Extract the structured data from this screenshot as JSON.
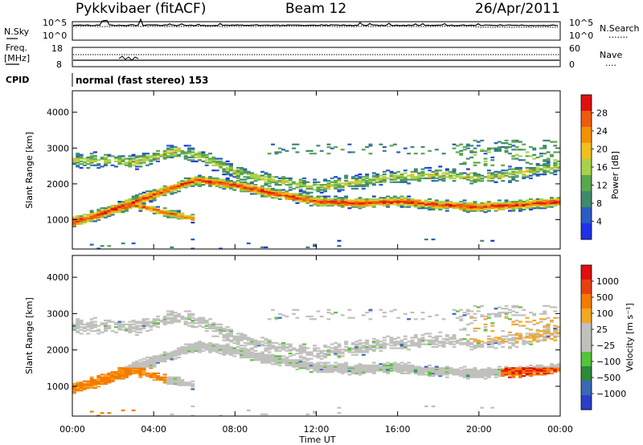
{
  "header": {
    "radar": "Pykkvibaer (fitACF)",
    "beam": "Beam 12",
    "date": "26/Apr/2011"
  },
  "strip": {
    "left_label": "N.Sky",
    "left_ticks": [
      "10^5",
      "10^0"
    ],
    "right_label": "N.Search",
    "right_ticks": [
      "10^5",
      "10^0"
    ],
    "right_legend": "......."
  },
  "freq": {
    "left_label_1": "Freq.",
    "left_label_2": "[MHz]",
    "left_ticks": [
      "18",
      "8"
    ],
    "right_label": "Nave",
    "right_ticks": [
      "60",
      "0"
    ],
    "right_legend": "....",
    "cpid_label": "CPID",
    "mode": "normal (fast stereo) 153"
  },
  "chart_data": [
    {
      "type": "heatmap",
      "parameter": "power",
      "ylabel": "Slant Range [km]",
      "ylim": [
        180,
        4600
      ],
      "yticks": [
        "1000",
        "2000",
        "3000",
        "4000"
      ],
      "colorbar_label": "Power [dB]",
      "colorbar_ticks": [
        "4",
        "8",
        "12",
        "16",
        "20",
        "24",
        "28"
      ],
      "colorscale": [
        "#1e32e6",
        "#2a5cc4",
        "#3f8a6c",
        "#5aa84e",
        "#a8d24a",
        "#f0c020",
        "#f39200",
        "#ef5a0c",
        "#e01010"
      ],
      "bands": [
        {
          "name": "main",
          "range_km": [
            [
              0,
              900
            ],
            [
              2,
              1300
            ],
            [
              4,
              1700
            ],
            [
              6,
              2100
            ],
            [
              8,
              1950
            ],
            [
              10,
              1700
            ],
            [
              12,
              1500
            ],
            [
              14,
              1450
            ],
            [
              16,
              1500
            ],
            [
              18,
              1400
            ],
            [
              20,
              1350
            ],
            [
              22,
              1400
            ],
            [
              24,
              1500
            ]
          ]
        }
      ]
    },
    {
      "type": "heatmap",
      "parameter": "velocity",
      "ylabel": "Slant Range [km]",
      "xlabel": "Time UT",
      "ylim": [
        180,
        4600
      ],
      "yticks": [
        "1000",
        "2000",
        "3000",
        "4000"
      ],
      "xticks": [
        "00:00",
        "04:00",
        "08:00",
        "12:00",
        "16:00",
        "20:00",
        "00:00"
      ],
      "colorbar_label": "Velocity [m s⁻¹]",
      "colorbar_ticks": [
        "1000",
        "500",
        "100",
        "25",
        "−25",
        "−100",
        "−500",
        "−1000"
      ],
      "colorscale": [
        "#2b3ec8",
        "#3a67b8",
        "#2d8a3a",
        "#54c43a",
        "#c0c0bc",
        "#c0c0bc",
        "#f5a623",
        "#f47b00",
        "#e64010",
        "#e01010"
      ]
    }
  ]
}
